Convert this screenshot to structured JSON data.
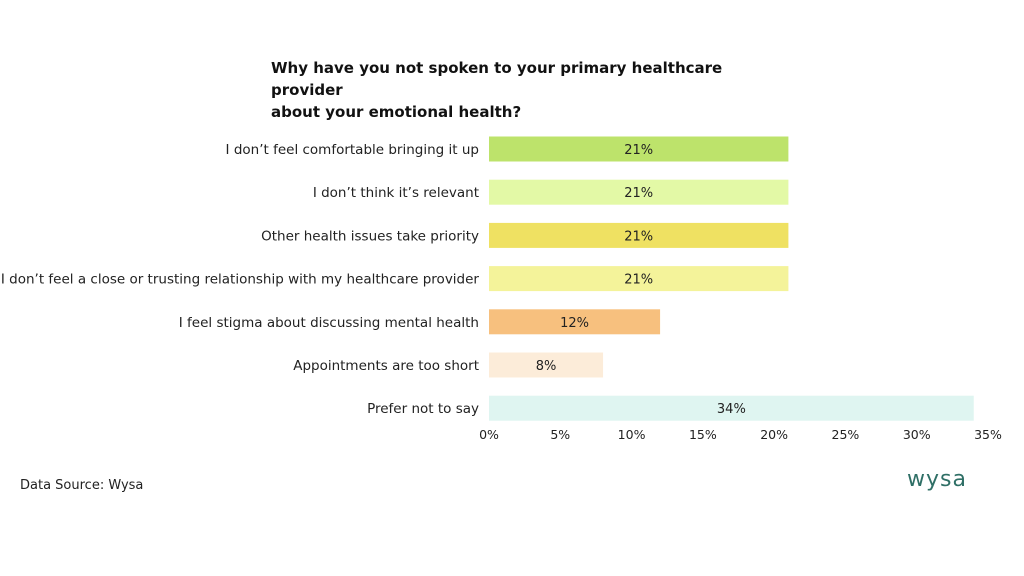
{
  "chart_data": {
    "type": "bar",
    "orientation": "horizontal",
    "title_lines": [
      "Why have you not spoken to your primary healthcare provider",
      "about your emotional health?"
    ],
    "categories": [
      "I don’t feel comfortable bringing it up",
      "I don’t think it’s relevant",
      "Other health issues take priority",
      "I don’t feel a close or trusting relationship with my healthcare provider",
      "I feel stigma about discussing mental health",
      "Appointments are too short",
      "Prefer not to say"
    ],
    "values": [
      21,
      21,
      21,
      21,
      12,
      8,
      34
    ],
    "value_labels": [
      "21%",
      "21%",
      "21%",
      "21%",
      "12%",
      "8%",
      "34%"
    ],
    "colors": [
      "#bde36b",
      "#e3f9a6",
      "#efe162",
      "#f4f39a",
      "#f7c07e",
      "#fcecd9",
      "#dff5f1"
    ],
    "xlim": [
      0,
      35
    ],
    "xticks": [
      "0%",
      "5%",
      "10%",
      "15%",
      "20%",
      "25%",
      "30%",
      "35%"
    ],
    "xtick_values": [
      0,
      5,
      10,
      15,
      20,
      25,
      30,
      35
    ],
    "grid": false,
    "legend": "none"
  },
  "footer": {
    "source": "Data Source: Wysa",
    "logo": "wysa"
  }
}
